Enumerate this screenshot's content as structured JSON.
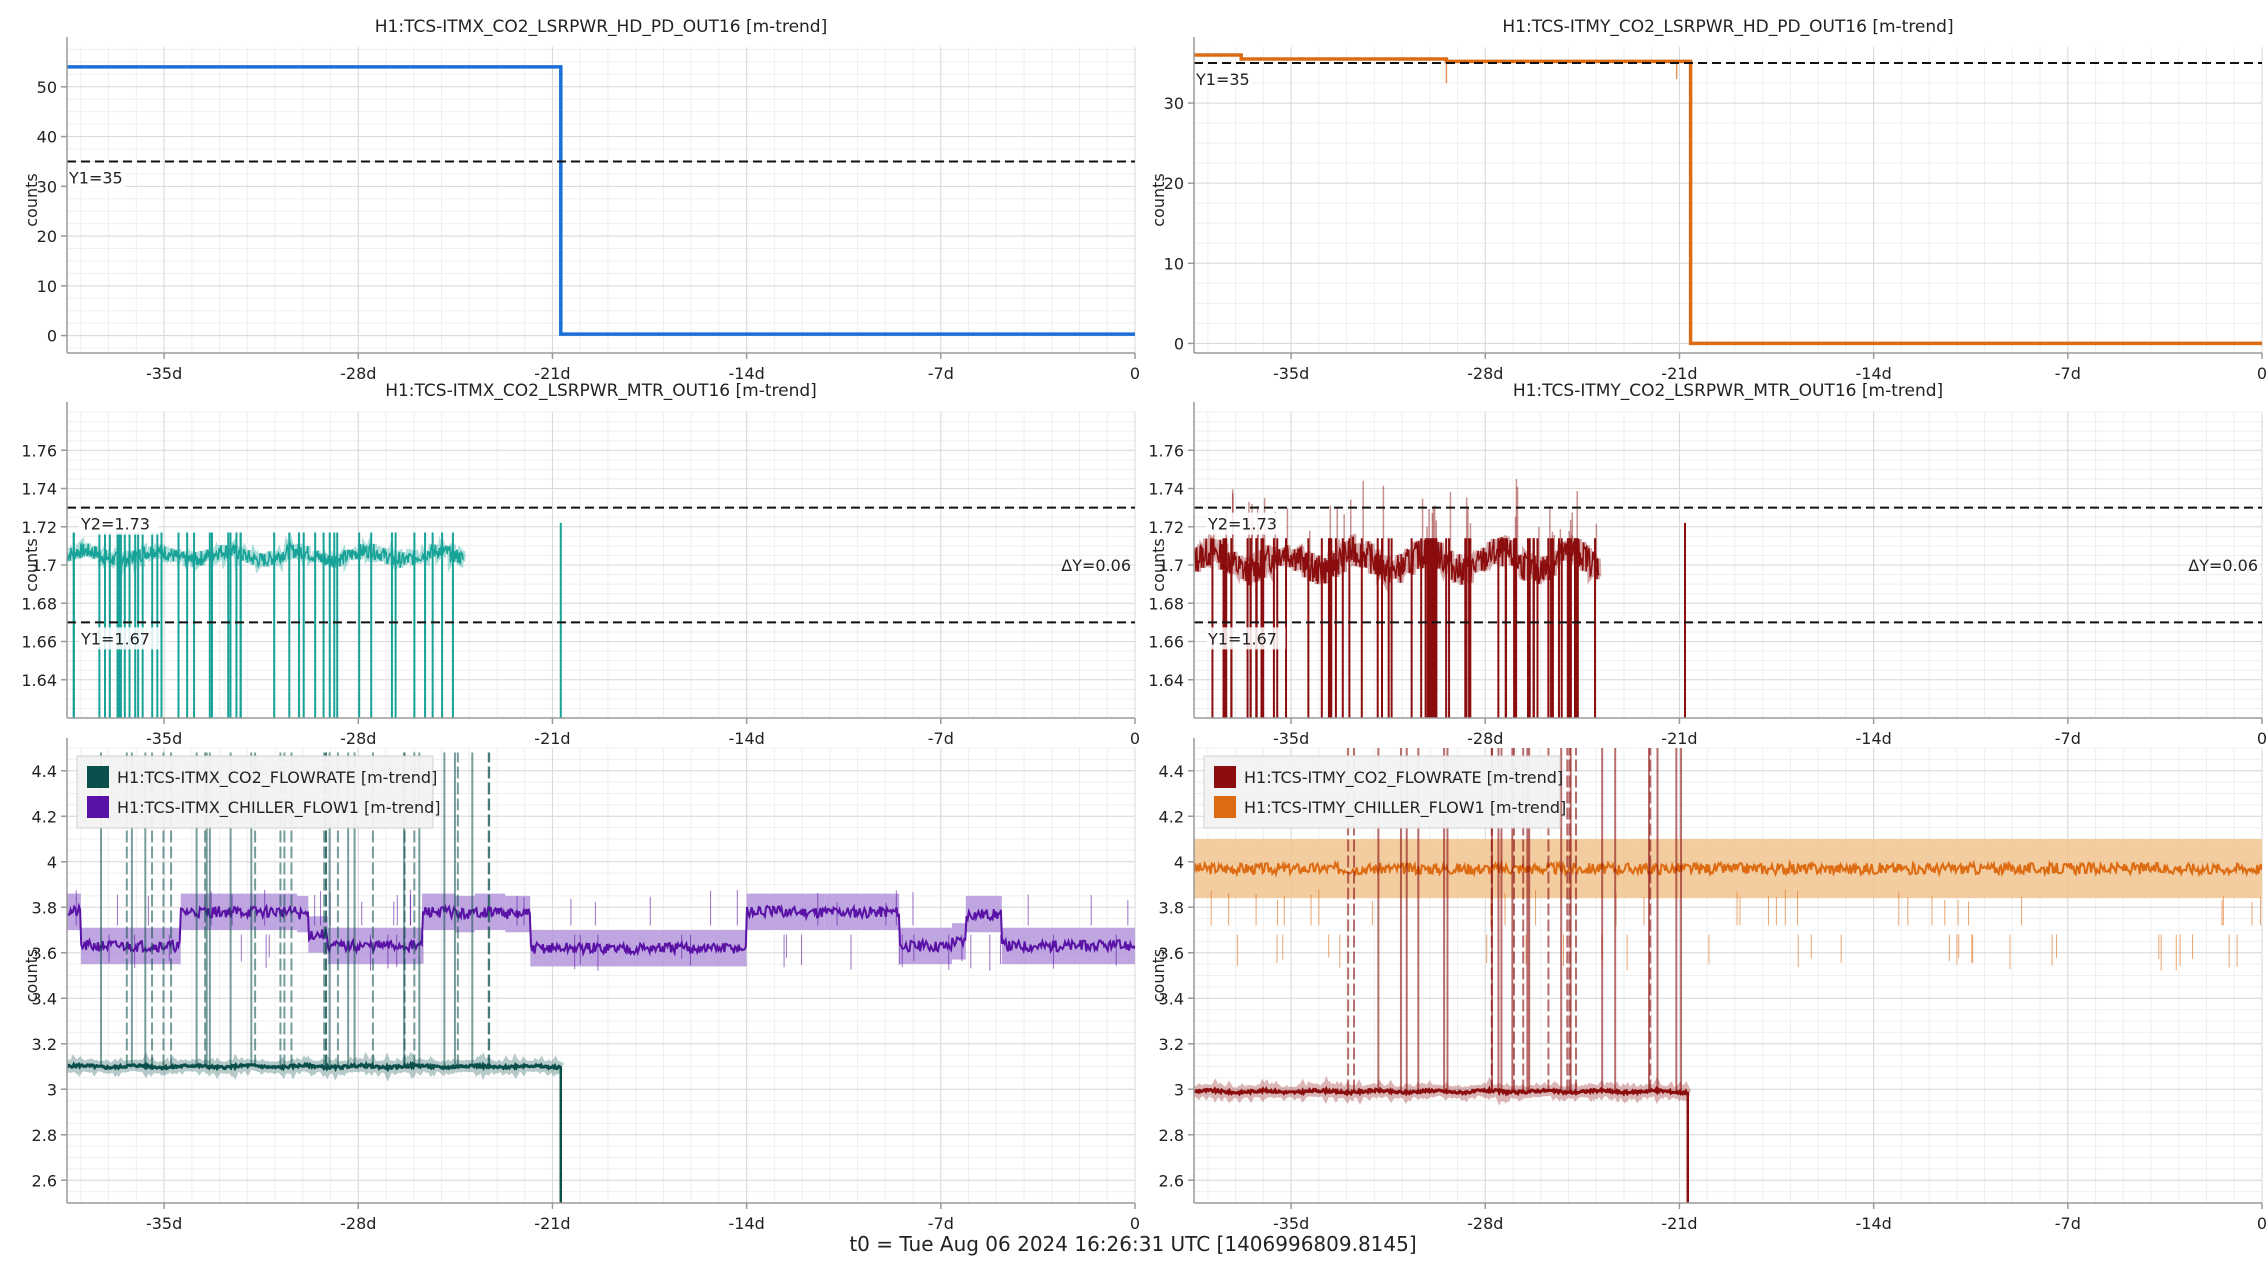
{
  "footer": "t0 = Tue Aug 06 2024 16:26:31 UTC [1406996809.8145]",
  "colors": {
    "axis": "#9a9a9a",
    "grid_major": "#d9d9d9",
    "grid_minor": "#efefef",
    "cursor": "#111111",
    "blue": "#1b6fd8",
    "orange": "#dc6b12",
    "teal": "#17a398",
    "dark_red": "#8b0d0d",
    "dark_teal": "#0b4f4c",
    "purple": "#5a12a6",
    "orange_band": "#f1c38f",
    "purple_band": "#b596dc"
  },
  "chart_data": [
    {
      "id": "itmx-hd-pd",
      "type": "line",
      "title": "H1:TCS-ITMX_CO2_LSRPWR_HD_PD_OUT16 [m-trend]",
      "ylabel": "counts",
      "xlim": [
        -38.5,
        0
      ],
      "ylim": [
        -3.5,
        58
      ],
      "xticks": [
        -35,
        -28,
        -21,
        -14,
        -7,
        0
      ],
      "xticklabels": [
        "-35d",
        "-28d",
        "-21d",
        "-14d",
        "-7d",
        "0"
      ],
      "yticks": [
        0,
        10,
        20,
        30,
        40,
        50
      ],
      "yticklabels": [
        "0",
        "10",
        "20",
        "30",
        "40",
        "50"
      ],
      "cursors": [
        {
          "label": "Y1=35",
          "y": 35
        }
      ],
      "delta_label": "",
      "legend": [],
      "series": [
        {
          "color_key": "blue",
          "points": [
            [
              -38.5,
              54
            ],
            [
              -20.7,
              54
            ],
            [
              -20.7,
              0.3
            ],
            [
              0,
              0.3
            ]
          ]
        }
      ]
    },
    {
      "id": "itmy-hd-pd",
      "type": "line",
      "title": "H1:TCS-ITMY_CO2_LSRPWR_HD_PD_OUT16 [m-trend]",
      "ylabel": "counts",
      "xlim": [
        -38.5,
        0
      ],
      "ylim": [
        -1.2,
        37
      ],
      "xticks": [
        -35,
        -28,
        -21,
        -14,
        -7,
        0
      ],
      "xticklabels": [
        "-35d",
        "-28d",
        "-21d",
        "-14d",
        "-7d",
        "0"
      ],
      "yticks": [
        0,
        10,
        20,
        30
      ],
      "yticklabels": [
        "0",
        "10",
        "20",
        "30"
      ],
      "cursors": [
        {
          "label": "Y1=35",
          "y": 35
        }
      ],
      "delta_label": "",
      "legend": [],
      "series": [
        {
          "color_key": "orange",
          "points": [
            [
              -38.5,
              36
            ],
            [
              -36.8,
              36
            ],
            [
              -36.8,
              35.5
            ],
            [
              -29.4,
              35.5
            ],
            [
              -29.4,
              35.2
            ],
            [
              -20.6,
              35.2
            ],
            [
              -20.6,
              0
            ],
            [
              0,
              0
            ]
          ]
        }
      ]
    },
    {
      "id": "itmx-mtr",
      "type": "line",
      "title": "H1:TCS-ITMX_CO2_LSRPWR_MTR_OUT16 [m-trend]",
      "ylabel": "counts",
      "xlim": [
        -38.5,
        0
      ],
      "ylim": [
        1.62,
        1.78
      ],
      "xticks": [
        -35,
        -28,
        -21,
        -14,
        -7,
        0
      ],
      "xticklabels": [
        "-35d",
        "-28d",
        "-21d",
        "-14d",
        "-7d",
        "0"
      ],
      "yticks": [
        1.64,
        1.66,
        1.68,
        1.7,
        1.72,
        1.74,
        1.76
      ],
      "yticklabels": [
        "1.64",
        "1.66",
        "1.68",
        "1.7",
        "1.72",
        "1.74",
        "1.76"
      ],
      "cursors": [
        {
          "label": "Y2=1.73",
          "y": 1.73
        },
        {
          "label": "Y1=1.67",
          "y": 1.67
        }
      ],
      "delta_label": "ΔY=0.06",
      "legend": [],
      "series": [
        {
          "color_key": "teal",
          "kind": "noisy",
          "level": 1.705,
          "noise": 0.004,
          "x_start": -38.5,
          "x_end": -24.2,
          "drop_count": 45,
          "drop_to": 1.62,
          "extra_spike_x": -20.7,
          "seed": 7
        }
      ]
    },
    {
      "id": "itmy-mtr",
      "type": "line",
      "title": "H1:TCS-ITMY_CO2_LSRPWR_MTR_OUT16 [m-trend]",
      "ylabel": "counts",
      "xlim": [
        -38.5,
        0
      ],
      "ylim": [
        1.62,
        1.78
      ],
      "xticks": [
        -35,
        -28,
        -21,
        -14,
        -7,
        0
      ],
      "xticklabels": [
        "-35d",
        "-28d",
        "-21d",
        "-14d",
        "-7d",
        "0"
      ],
      "yticks": [
        1.64,
        1.66,
        1.68,
        1.7,
        1.72,
        1.74,
        1.76
      ],
      "yticklabels": [
        "1.64",
        "1.66",
        "1.68",
        "1.7",
        "1.72",
        "1.74",
        "1.76"
      ],
      "cursors": [
        {
          "label": "Y2=1.73",
          "y": 1.73
        },
        {
          "label": "Y1=1.67",
          "y": 1.67
        }
      ],
      "delta_label": "ΔY=0.06",
      "legend": [],
      "series": [
        {
          "color_key": "dark_red",
          "kind": "noisy",
          "level": 1.702,
          "noise": 0.008,
          "x_start": -38.5,
          "x_end": -23.9,
          "drop_count": 70,
          "drop_to": 1.62,
          "extra_spike_x": -20.8,
          "seed": 13
        }
      ]
    },
    {
      "id": "itmx-flow",
      "type": "line",
      "title": "",
      "ylabel": "counts",
      "xlim": [
        -38.5,
        0
      ],
      "ylim": [
        2.5,
        4.5
      ],
      "xticks": [
        -35,
        -28,
        -21,
        -14,
        -7,
        0
      ],
      "xticklabels": [
        "-35d",
        "-28d",
        "-21d",
        "-14d",
        "-7d",
        "0"
      ],
      "yticks": [
        2.6,
        2.8,
        3,
        3.2,
        3.4,
        3.6,
        3.8,
        4,
        4.2,
        4.4
      ],
      "yticklabels": [
        "2.6",
        "2.8",
        "3",
        "3.2",
        "3.4",
        "3.6",
        "3.8",
        "4",
        "4.2",
        "4.4"
      ],
      "cursors": [],
      "delta_label": "",
      "legend": [
        {
          "label": "H1:TCS-ITMX_CO2_FLOWRATE [m-trend]",
          "color_key": "dark_teal"
        },
        {
          "label": "H1:TCS-ITMX_CHILLER_FLOW1 [m-trend]",
          "color_key": "purple"
        }
      ],
      "series": [
        {
          "color_key": "purple",
          "kind": "steps",
          "band_key": "purple_band",
          "band": 0.08,
          "steps": [
            [
              -38.5,
              3.78
            ],
            [
              -38.0,
              3.63
            ],
            [
              -34.4,
              3.78
            ],
            [
              -30.2,
              3.77
            ],
            [
              -29.8,
              3.68
            ],
            [
              -29.1,
              3.63
            ],
            [
              -25.7,
              3.78
            ],
            [
              -24.5,
              3.77
            ],
            [
              -23.8,
              3.78
            ],
            [
              -22.7,
              3.77
            ],
            [
              -21.8,
              3.62
            ],
            [
              -14.0,
              3.78
            ],
            [
              -11.2,
              3.78
            ],
            [
              -8.5,
              3.63
            ],
            [
              -6.6,
              3.65
            ],
            [
              -6.1,
              3.77
            ],
            [
              -4.8,
              3.63
            ],
            [
              0,
              3.63
            ]
          ],
          "spike_count": 35,
          "spike_to": 4.48,
          "spike_end": -21.8,
          "seed": 21
        },
        {
          "color_key": "dark_teal",
          "kind": "flat",
          "band": 0.05,
          "level": 3.1,
          "x_start": -38.5,
          "x_end": -20.7,
          "drop_to": 2.5,
          "seed": 5
        }
      ]
    },
    {
      "id": "itmy-flow",
      "type": "line",
      "title": "",
      "ylabel": "counts",
      "xlim": [
        -38.5,
        0
      ],
      "ylim": [
        2.5,
        4.5
      ],
      "xticks": [
        -35,
        -28,
        -21,
        -14,
        -7,
        0
      ],
      "xticklabels": [
        "-35d",
        "-28d",
        "-21d",
        "-14d",
        "-7d",
        "0"
      ],
      "yticks": [
        2.6,
        2.8,
        3,
        3.2,
        3.4,
        3.6,
        3.8,
        4,
        4.2,
        4.4
      ],
      "yticklabels": [
        "2.6",
        "2.8",
        "3",
        "3.2",
        "3.4",
        "3.6",
        "3.8",
        "4",
        "4.2",
        "4.4"
      ],
      "cursors": [],
      "delta_label": "",
      "legend": [
        {
          "label": "H1:TCS-ITMY_CO2_FLOWRATE [m-trend]",
          "color_key": "dark_red"
        },
        {
          "label": "H1:TCS-ITMY_CHILLER_FLOW1 [m-trend]",
          "color_key": "orange"
        }
      ],
      "series": [
        {
          "color_key": "orange",
          "kind": "steps",
          "band_key": "orange_band",
          "band": 0.13,
          "steps": [
            [
              -38.5,
              3.97
            ],
            [
              0,
              3.97
            ]
          ],
          "spike_count": 0,
          "spike_to": 4.48,
          "spike_end": 0,
          "seed": 3
        },
        {
          "color_key": "dark_red",
          "kind": "flat",
          "band": 0.03,
          "level": 2.99,
          "x_start": -38.5,
          "x_end": -20.7,
          "drop_to": 2.5,
          "spike_count": 30,
          "spike_to": 4.5,
          "seed": 9
        }
      ]
    }
  ]
}
